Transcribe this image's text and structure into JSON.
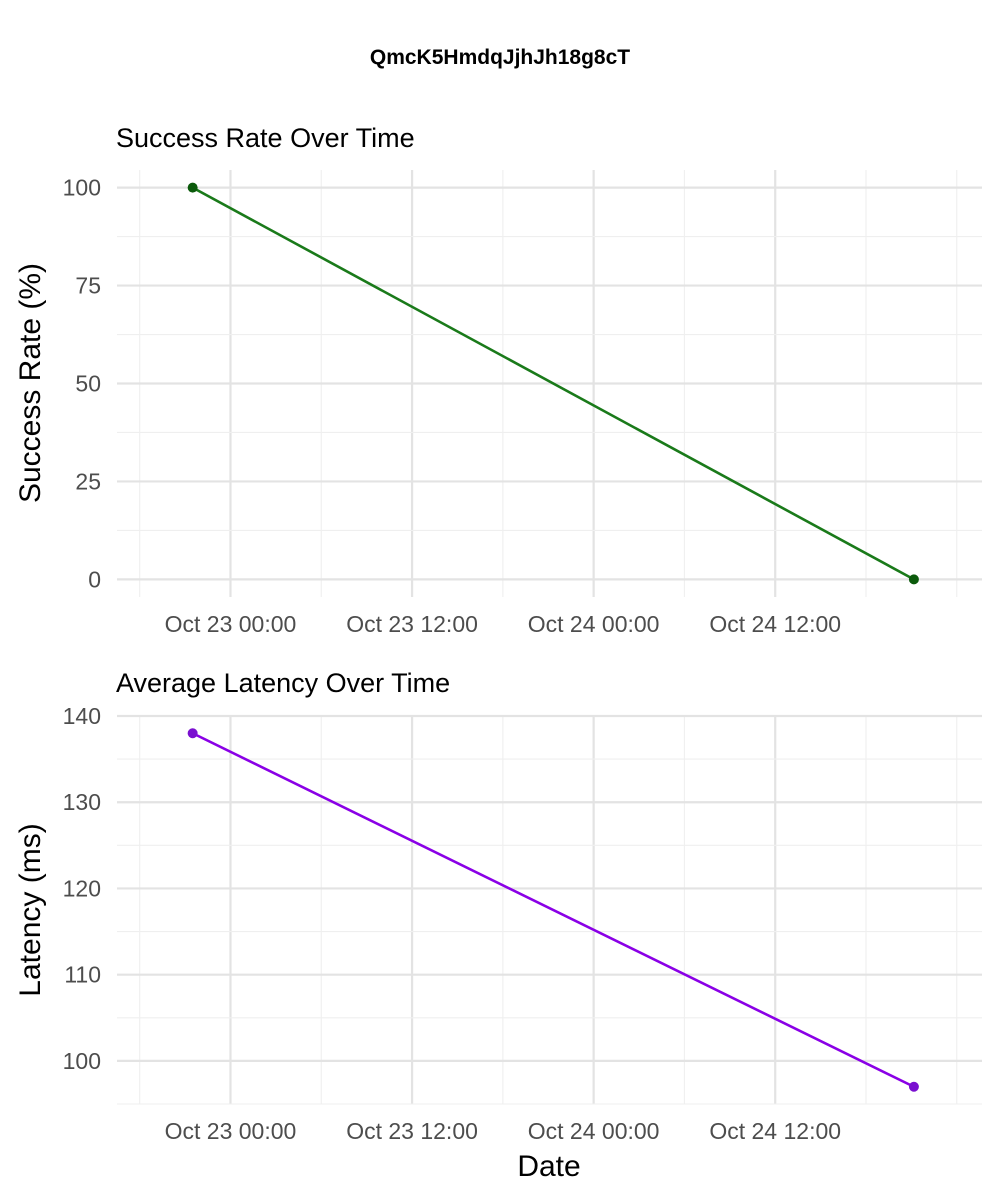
{
  "figure": {
    "title": "QmcK5HmdqJjhJh18g8cT"
  },
  "chart_data": [
    {
      "type": "line",
      "title": "Success Rate Over Time",
      "xlabel": "",
      "ylabel": "Success Rate (%)",
      "x_ticks": [
        "Oct 23 00:00",
        "Oct 23 12:00",
        "Oct 24 00:00",
        "Oct 24 12:00"
      ],
      "xlim": [
        "Oct 22 16:30",
        "Oct 25 01:40"
      ],
      "ylim": [
        -4.5,
        104.5
      ],
      "y_ticks": [
        0,
        25,
        50,
        75,
        100
      ],
      "grid": true,
      "series": [
        {
          "color": "#1a7a1a",
          "point_color": "#0b5a0b",
          "x": [
            "Oct 22 21:30",
            "Oct 24 21:10"
          ],
          "y": [
            100,
            0
          ]
        }
      ]
    },
    {
      "type": "line",
      "title": "Average Latency Over Time",
      "xlabel": "Date",
      "ylabel": "Latency (ms)",
      "x_ticks": [
        "Oct 23 00:00",
        "Oct 23 12:00",
        "Oct 24 00:00",
        "Oct 24 12:00"
      ],
      "xlim": [
        "Oct 22 16:30",
        "Oct 25 01:40"
      ],
      "ylim": [
        95,
        140
      ],
      "y_ticks": [
        100,
        110,
        120,
        130,
        140
      ],
      "grid": true,
      "series": [
        {
          "color": "#8a00e6",
          "point_color": "#7a10d0",
          "x": [
            "Oct 22 21:30",
            "Oct 24 21:10"
          ],
          "y": [
            138,
            97
          ]
        }
      ]
    }
  ]
}
